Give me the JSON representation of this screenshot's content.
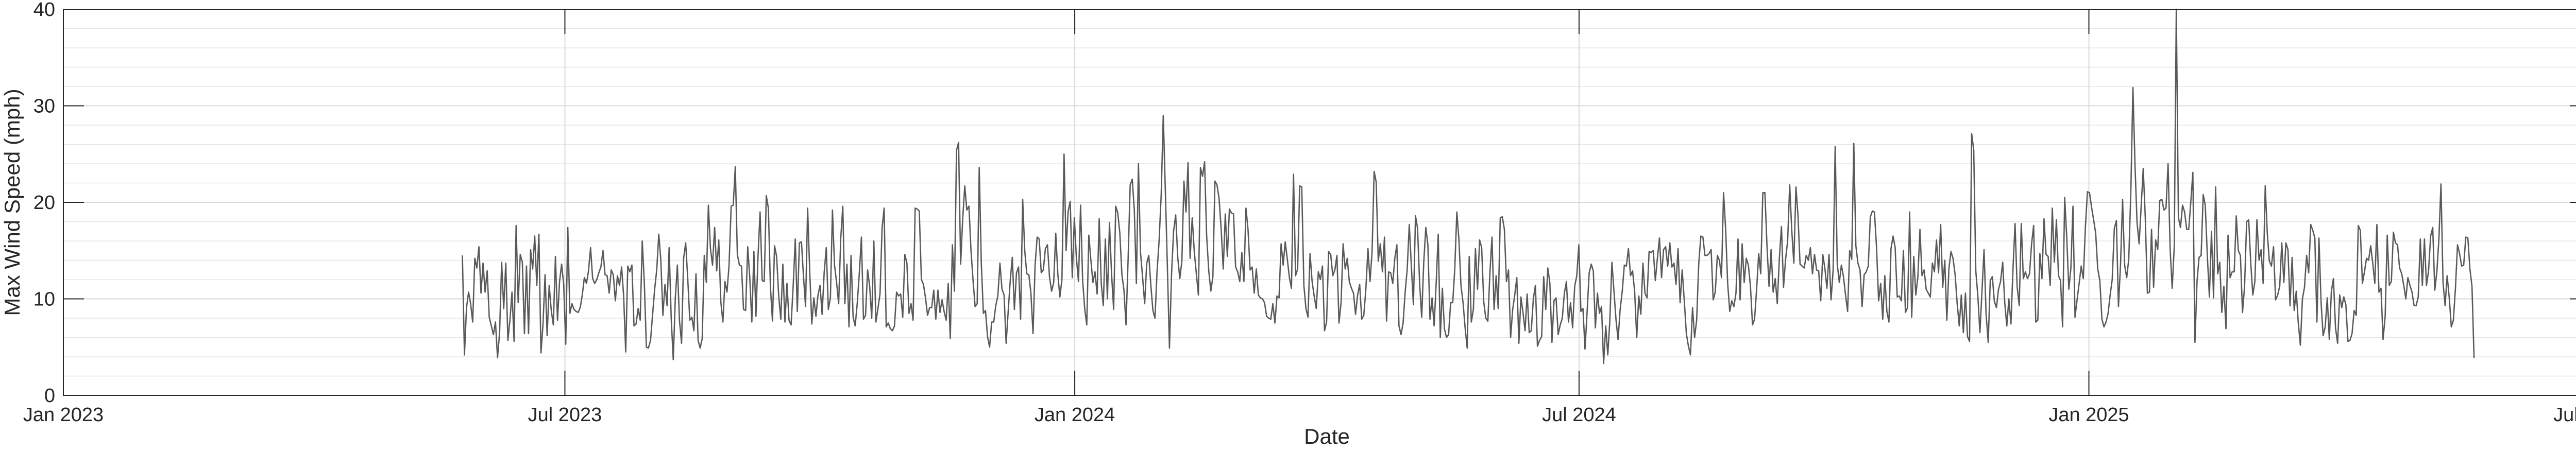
{
  "chart_data": {
    "type": "line",
    "title": "",
    "xlabel": "Date",
    "ylabel": "Max Wind Speed (mph)",
    "xlim": [
      "2023-01-01",
      "2025-07-01"
    ],
    "ylim": [
      0,
      40
    ],
    "grid": "on",
    "minor_grid": "on",
    "legend": "none",
    "line_color": "#595959",
    "x_ticks": [
      {
        "date": "2023-01-01",
        "label": "Jan 2023"
      },
      {
        "date": "2023-07-01",
        "label": "Jul 2023"
      },
      {
        "date": "2024-01-01",
        "label": "Jan 2024"
      },
      {
        "date": "2024-07-01",
        "label": "Jul 2024"
      },
      {
        "date": "2025-01-01",
        "label": "Jan 2025"
      },
      {
        "date": "2025-07-01",
        "label": "Jul 2025"
      }
    ],
    "y_ticks": [
      0,
      10,
      20,
      30,
      40
    ],
    "y_minor_step": 2,
    "series": [
      {
        "x_start": "2023-05-25",
        "x_end": "2025-05-20",
        "values": [
          14.5,
          4.2,
          9.1,
          10.7,
          9.5,
          7.6,
          14.2,
          13.2,
          15.4,
          10.6,
          13.7,
          10.7,
          12.9,
          8.1,
          7.2,
          6.3,
          7.6,
          3.9,
          6.5,
          13.8,
          9.0,
          13.7,
          5.7,
          7.8,
          10.7,
          5.6,
          17.6,
          9.6,
          14.6,
          13.8,
          6.4,
          13.4,
          6.4,
          15.1,
          13.1,
          16.5,
          11.4,
          16.7,
          4.4,
          7.4,
          12.5,
          6.2,
          11.4,
          8.8,
          7.3,
          14.4,
          7.8,
          11.8,
          13.6,
          11.5,
          5.3,
          17.4,
          8.5,
          9.5,
          8.9,
          8.7,
          8.6,
          9.1,
          10.4,
          12.2,
          11.6,
          12.9,
          15.3,
          12.1,
          11.6,
          12.0,
          12.7,
          13.3,
          15.0,
          12.5,
          12.4,
          10.6,
          13.0,
          12.5,
          9.8,
          12.4,
          11.4,
          13.3,
          10.3,
          4.5,
          13.4,
          12.8,
          13.5,
          7.2,
          7.4,
          9.0,
          7.8,
          16.0,
          11.7,
          5.0,
          4.9,
          5.7,
          8.4,
          11.0,
          13.0,
          16.7,
          14.0,
          8.3,
          11.5,
          9.3,
          15.3,
          8.0,
          3.7,
          10.1,
          13.5,
          7.8,
          5.4,
          14.2,
          15.8,
          12.1,
          7.8,
          8.1,
          6.7,
          12.6,
          5.7,
          4.9,
          5.9,
          14.5,
          11.7,
          19.7,
          15.2,
          13.5,
          17.4,
          12.9,
          16.1,
          9.7,
          7.6,
          11.8,
          10.7,
          13.5,
          19.6,
          19.7,
          23.7,
          14.6,
          13.5,
          13.4,
          8.9,
          8.8,
          15.4,
          12.2,
          7.6,
          14.9,
          8.2,
          14.4,
          19.0,
          11.9,
          11.8,
          20.7,
          19.4,
          11.2,
          7.7,
          15.5,
          14.4,
          10.3,
          7.9,
          13.6,
          7.6,
          11.6,
          7.8,
          7.3,
          11.4,
          16.2,
          8.7,
          15.8,
          15.9,
          12.3,
          9.2,
          19.4,
          12.8,
          7.4,
          10.1,
          8.2,
          10.4,
          11.4,
          8.4,
          12.7,
          15.3,
          8.9,
          10.1,
          19.2,
          13.5,
          11.7,
          9.5,
          16.3,
          19.6,
          9.5,
          13.6,
          7.1,
          14.5,
          8.1,
          7.2,
          9.6,
          12.7,
          16.4,
          7.9,
          8.3,
          13.0,
          11.3,
          8.0,
          16.0,
          7.6,
          9.0,
          10.5,
          17.3,
          19.4,
          7.1,
          7.5,
          6.9,
          6.7,
          7.2,
          10.7,
          10.3,
          10.5,
          8.1,
          14.6,
          13.7,
          8.5,
          9.5,
          7.8,
          19.4,
          19.3,
          19.1,
          12.0,
          11.5,
          10.1,
          8.3,
          9.1,
          9.1,
          10.9,
          7.9,
          10.9,
          8.6,
          9.9,
          8.7,
          7.8,
          11.6,
          5.9,
          15.6,
          10.8,
          25.4,
          26.2,
          13.6,
          18.3,
          21.7,
          19.2,
          19.6,
          15.0,
          11.9,
          9.2,
          9.5,
          23.6,
          13.7,
          8.5,
          8.8,
          6.1,
          5.0,
          7.6,
          7.6,
          9.3,
          10.3,
          13.7,
          11.0,
          10.4,
          5.4,
          8.7,
          11.9,
          14.3,
          8.9,
          12.7,
          13.3,
          7.9,
          20.3,
          15.0,
          12.6,
          12.5,
          10.6,
          6.4,
          13.5,
          16.4,
          16.2,
          12.7,
          13.0,
          15.2,
          15.6,
          12.2,
          10.8,
          11.7,
          16.8,
          12.6,
          10.2,
          12.0,
          25.0,
          15.0,
          19.1,
          20.1,
          12.2,
          18.4,
          14.2,
          11.8,
          19.7,
          11.9,
          9.0,
          7.3,
          16.6,
          14.0,
          11.7,
          12.8,
          10.5,
          18.3,
          11.6,
          9.3,
          16.2,
          10.0,
          17.9,
          12.5,
          8.9,
          19.6,
          18.9,
          16.8,
          12.5,
          10.9,
          7.3,
          14.2,
          21.8,
          22.4,
          19.2,
          11.6,
          24.0,
          14.8,
          12.3,
          9.5,
          13.7,
          14.5,
          11.4,
          8.8,
          8.0,
          12.8,
          16.1,
          20.8,
          29.0,
          21.3,
          13.3,
          4.9,
          12.5,
          17.0,
          18.7,
          14.3,
          12.1,
          13.9,
          22.2,
          19.0,
          24.1,
          14.2,
          18.4,
          14.9,
          12.6,
          10.4,
          23.6,
          22.7,
          24.2,
          16.5,
          12.9,
          10.8,
          12.3,
          22.2,
          21.8,
          20.4,
          17.3,
          13.1,
          18.8,
          14.4,
          19.3,
          18.9,
          18.8,
          13.3,
          12.8,
          11.8,
          14.8,
          11.8,
          19.4,
          17.2,
          13.0,
          13.3,
          10.6,
          13.1,
          10.4,
          10.1,
          10.0,
          9.6,
          8.2,
          8.0,
          7.9,
          9.5,
          7.5,
          10.3,
          10.1,
          15.7,
          13.5,
          15.9,
          14.1,
          12.2,
          11.1,
          22.9,
          12.4,
          13.1,
          21.7,
          21.6,
          11.4,
          9.0,
          8.1,
          14.7,
          11.8,
          10.3,
          9.0,
          12.8,
          12.0,
          13.4,
          6.7,
          7.6,
          14.9,
          14.6,
          12.4,
          13.0,
          14.5,
          7.5,
          9.6,
          15.7,
          13.1,
          14.2,
          11.8,
          11.1,
          10.6,
          8.4,
          10.4,
          11.5,
          7.9,
          8.3,
          11.0,
          15.2,
          11.8,
          14.9,
          23.2,
          22.1,
          13.9,
          15.7,
          12.8,
          16.4,
          7.7,
          12.8,
          12.7,
          11.6,
          14.2,
          15.6,
          7.2,
          6.3,
          7.5,
          10.7,
          13.1,
          17.7,
          13.4,
          9.4,
          18.6,
          17.3,
          11.6,
          8.1,
          13.8,
          17.4,
          15.6,
          7.9,
          10.1,
          7.2,
          11.6,
          16.7,
          6.0,
          11.1,
          6.9,
          6.0,
          6.3,
          9.6,
          9.6,
          13.1,
          19.0,
          16.2,
          11.4,
          9.6,
          7.0,
          4.9,
          14.4,
          7.6,
          8.9,
          15.2,
          11.0,
          16.1,
          15.3,
          9.7,
          8.0,
          7.7,
          12.7,
          16.4,
          8.9,
          12.4,
          9.0,
          18.4,
          18.5,
          17.2,
          11.8,
          13.0,
          6.0,
          8.9,
          10.4,
          12.2,
          5.4,
          10.2,
          8.6,
          6.7,
          10.5,
          6.5,
          6.7,
          10.0,
          11.4,
          5.1,
          5.7,
          6.1,
          12.3,
          8.9,
          13.2,
          11.6,
          5.5,
          9.8,
          10.1,
          6.3,
          7.3,
          8.0,
          10.6,
          11.8,
          7.6,
          9.6,
          7.0,
          11.3,
          12.4,
          15.6,
          8.7,
          9.0,
          4.8,
          8.6,
          12.7,
          13.6,
          12.9,
          7.0,
          10.6,
          8.5,
          9.2,
          3.3,
          7.2,
          4.2,
          7.8,
          13.8,
          10.8,
          7.8,
          5.8,
          8.9,
          10.8,
          13.5,
          13.4,
          15.2,
          12.4,
          12.9,
          10.8,
          6.0,
          10.3,
          8.4,
          13.7,
          10.6,
          10.1,
          14.9,
          14.8,
          15.0,
          11.9,
          14.2,
          16.3,
          12.2,
          15.1,
          15.4,
          13.4,
          15.8,
          13.3,
          13.7,
          11.5,
          15.2,
          9.6,
          13.0,
          9.8,
          6.4,
          5.1,
          4.2,
          9.1,
          6.0,
          7.8,
          13.6,
          16.5,
          16.4,
          14.5,
          14.5,
          14.7,
          15.1,
          9.9,
          10.7,
          14.5,
          14.0,
          12.2,
          21.0,
          17.3,
          11.6,
          8.7,
          9.8,
          9.2,
          10.6,
          16.2,
          9.9,
          15.7,
          11.7,
          14.2,
          13.5,
          11.3,
          7.3,
          7.9,
          11.0,
          14.7,
          12.6,
          21.0,
          21.0,
          15.5,
          11.3,
          15.1,
          10.7,
          12.1,
          9.5,
          14.2,
          17.5,
          11.2,
          14.1,
          16.0,
          21.8,
          17.1,
          13.7,
          21.6,
          18.6,
          13.6,
          13.4,
          13.2,
          14.5,
          14.0,
          15.3,
          12.6,
          14.6,
          13.0,
          12.9,
          9.8,
          14.6,
          13.2,
          11.1,
          14.6,
          9.9,
          13.0,
          25.8,
          13.6,
          11.7,
          13.5,
          12.3,
          10.4,
          8.7,
          15.0,
          14.1,
          26.1,
          15.5,
          13.7,
          13.0,
          9.2,
          12.5,
          12.8,
          13.4,
          18.5,
          19.1,
          19.0,
          15.3,
          9.8,
          11.6,
          7.9,
          12.4,
          8.7,
          7.6,
          15.2,
          16.5,
          15.3,
          10.2,
          10.3,
          9.8,
          15.0,
          8.6,
          9.1,
          19.0,
          8.1,
          14.4,
          10.4,
          12.3,
          17.2,
          12.4,
          13.0,
          11.0,
          10.6,
          10.2,
          13.7,
          12.8,
          16.1,
          12.7,
          17.7,
          11.2,
          14.0,
          7.8,
          13.1,
          14.9,
          14.2,
          12.5,
          9.5,
          7.2,
          10.4,
          6.5,
          10.6,
          6.1,
          5.6,
          27.1,
          25.4,
          12.9,
          10.3,
          6.5,
          10.8,
          15.1,
          8.4,
          5.5,
          11.9,
          12.3,
          9.7,
          9.1,
          11.0,
          11.8,
          13.8,
          9.6,
          7.2,
          10.0,
          7.4,
          13.1,
          17.8,
          11.3,
          9.3,
          17.8,
          12.1,
          12.8,
          12.1,
          12.6,
          15.7,
          17.6,
          7.6,
          7.8,
          14.7,
          12.1,
          18.3,
          14.6,
          14.4,
          11.4,
          19.4,
          13.8,
          18.2,
          12.4,
          11.9,
          7.1,
          20.5,
          16.3,
          11.0,
          13.2,
          19.6,
          8.1,
          9.9,
          11.6,
          13.4,
          12.1,
          17.4,
          21.1,
          21.0,
          19.5,
          18.2,
          16.8,
          13.1,
          11.9,
          7.9,
          7.1,
          7.6,
          8.5,
          10.4,
          12.0,
          17.3,
          18.1,
          9.2,
          13.5,
          20.3,
          13.5,
          12.2,
          14.1,
          21.2,
          31.9,
          23.9,
          17.9,
          15.7,
          19.6,
          23.5,
          18.4,
          10.6,
          10.7,
          17.2,
          11.2,
          16.1,
          15.1,
          20.2,
          20.3,
          19.2,
          19.4,
          24.0,
          15.2,
          11.1,
          15.4,
          40.0,
          18.4,
          17.4,
          19.7,
          19.0,
          17.2,
          17.2,
          20.0,
          23.1,
          5.5,
          11.8,
          14.3,
          14.5,
          20.8,
          19.7,
          14.5,
          10.2,
          17.0,
          10.1,
          21.6,
          12.6,
          13.8,
          8.6,
          11.3,
          6.9,
          16.6,
          12.2,
          12.8,
          12.8,
          18.6,
          15.0,
          14.5,
          8.6,
          11.3,
          18.0,
          18.2,
          13.7,
          10.4,
          11.8,
          18.2,
          14.0,
          15.1,
          11.6,
          21.7,
          16.8,
          13.9,
          13.4,
          15.4,
          9.9,
          10.4,
          11.3,
          15.8,
          11.7,
          15.8,
          15.1,
          9.3,
          14.3,
          8.8,
          10.8,
          7.5,
          5.2,
          10.0,
          11.2,
          14.5,
          12.7,
          17.7,
          17.1,
          16.3,
          7.6,
          16.3,
          9.6,
          6.2,
          7.1,
          10.1,
          5.8,
          10.8,
          12.1,
          7.0,
          5.4,
          10.4,
          9.1,
          10.2,
          9.4,
          5.6,
          5.7,
          6.4,
          8.8,
          8.3,
          17.6,
          17.1,
          11.6,
          12.8,
          14.2,
          14.0,
          15.5,
          13.7,
          11.6,
          17.7,
          10.7,
          11.1,
          5.8,
          8.2,
          16.6,
          11.4,
          11.8,
          16.9,
          15.8,
          15.6,
          13.2,
          12.6,
          11.4,
          10.0,
          12.2,
          11.4,
          10.7,
          9.3,
          9.3,
          10.2,
          16.2,
          11.4,
          16.2,
          11.4,
          12.9,
          16.5,
          17.4,
          10.9,
          12.8,
          16.2,
          21.9,
          11.7,
          9.3,
          12.4,
          10.1,
          7.1,
          7.8,
          11.1,
          15.6,
          14.7,
          13.4,
          13.5,
          16.4,
          16.3,
          13.1,
          11.3,
          3.9
        ]
      }
    ]
  }
}
